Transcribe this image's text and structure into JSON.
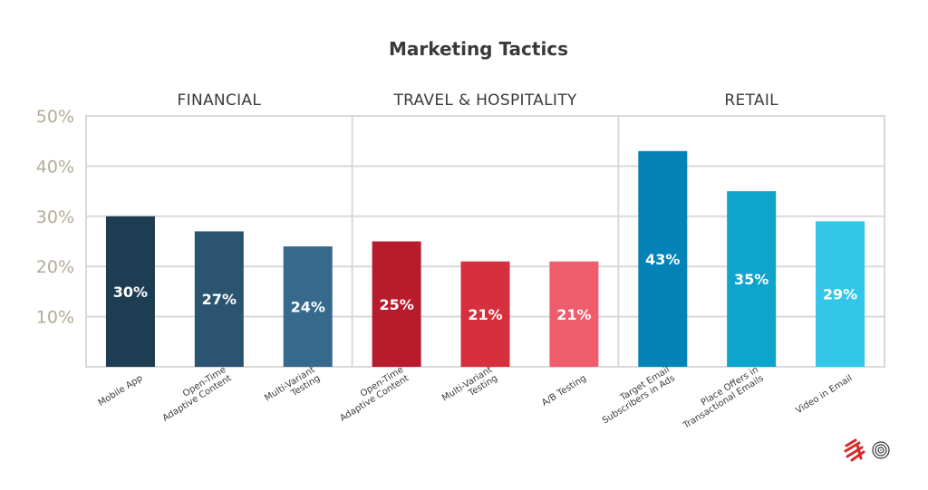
{
  "chart_data": {
    "type": "bar",
    "title": "Marketing Tactics",
    "ylim": [
      0,
      50
    ],
    "yticks": [
      "10%",
      "20%",
      "30%",
      "40%",
      "50%"
    ],
    "ytick_values": [
      10,
      20,
      30,
      40,
      50
    ],
    "grid": true,
    "groups": [
      {
        "name": "FINANCIAL",
        "categories": [
          [
            "Mobile App"
          ],
          [
            "Open-Time",
            "Adaptive Content"
          ],
          [
            "Multi-Variant",
            "Testing"
          ]
        ],
        "values": [
          30,
          27,
          24
        ],
        "labels": [
          "30%",
          "27%",
          "24%"
        ],
        "colors": [
          "#1f3d52",
          "#2b5470",
          "#36698c"
        ]
      },
      {
        "name": "TRAVEL & HOSPITALITY",
        "categories": [
          [
            "Open-Time",
            "Adaptive Content"
          ],
          [
            "Multi-Variant",
            "Testing"
          ],
          [
            "A/B Testing"
          ]
        ],
        "values": [
          25,
          21,
          21
        ],
        "labels": [
          "25%",
          "21%",
          "21%"
        ],
        "colors": [
          "#b81b2c",
          "#d6303f",
          "#ef5c6b"
        ]
      },
      {
        "name": "RETAIL",
        "categories": [
          [
            "Target Email",
            "Subscribers in Ads"
          ],
          [
            "Place Offers in",
            "Transactional Emails"
          ],
          [
            "Video in Email"
          ]
        ],
        "values": [
          43,
          35,
          29
        ],
        "labels": [
          "43%",
          "35%",
          "29%"
        ],
        "colors": [
          "#0483b6",
          "#0fa4cb",
          "#33c6e8"
        ]
      }
    ]
  },
  "brand": {
    "logo_mark_color": "#d62a2a",
    "logo_icon": "fingerprint-icon"
  }
}
